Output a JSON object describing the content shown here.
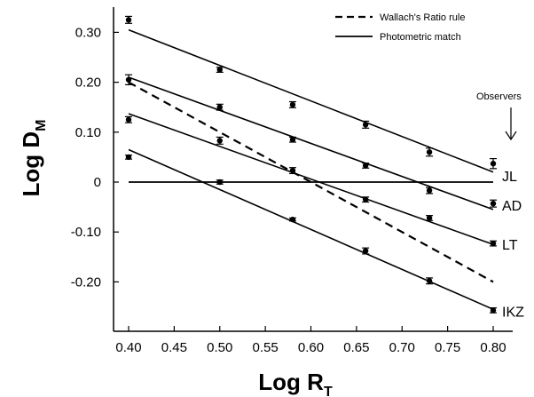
{
  "chart_data": {
    "type": "scatter",
    "title": "",
    "xlabel": {
      "main": "Log R",
      "sub": "T"
    },
    "ylabel": {
      "main": "Log D",
      "sub": "M"
    },
    "xlim": [
      0.38,
      0.81
    ],
    "ylim": [
      -0.27,
      0.33
    ],
    "x_ticks": [
      0.4,
      0.45,
      0.5,
      0.55,
      0.6,
      0.65,
      0.7,
      0.75,
      0.8
    ],
    "x_tick_labels": [
      "0.40",
      "0.45",
      "0.50",
      "0.55",
      "0.60",
      "0.65",
      "0.70",
      "0.75",
      "0.80"
    ],
    "y_ticks": [
      0.3,
      0.2,
      0.1,
      0,
      -0.1,
      -0.2
    ],
    "y_tick_labels": [
      "0.30",
      "0.20",
      "0.10",
      "0",
      "-0.10",
      "-0.20"
    ],
    "grid": false,
    "legend": {
      "position": "top-right",
      "entries": [
        {
          "label": "Wallach's Ratio rule",
          "style": "dashed"
        },
        {
          "label": "Photometric match",
          "style": "solid"
        }
      ]
    },
    "annotation": {
      "text": "Observers",
      "arrow": "down"
    },
    "x_points": [
      0.4,
      0.5,
      0.58,
      0.66,
      0.73,
      0.8
    ],
    "series": [
      {
        "name": "JL",
        "points": [
          0.325,
          0.225,
          0.155,
          0.115,
          0.06,
          0.037
        ],
        "errors": [
          0.007,
          0.005,
          0.006,
          0.007,
          0.008,
          0.01
        ],
        "fit_line": [
          [
            0.4,
            0.305
          ],
          [
            0.8,
            0.02
          ]
        ]
      },
      {
        "name": "AD",
        "points": [
          0.205,
          0.15,
          0.085,
          0.033,
          -0.017,
          -0.043
        ],
        "errors": [
          0.01,
          0.006,
          0.005,
          0.005,
          0.006,
          0.007
        ],
        "fit_line": [
          [
            0.4,
            0.21
          ],
          [
            0.8,
            -0.055
          ]
        ]
      },
      {
        "name": "LT",
        "points": [
          0.125,
          0.083,
          0.023,
          -0.035,
          -0.072,
          -0.123
        ],
        "errors": [
          0.006,
          0.007,
          0.006,
          0.005,
          0.005,
          0.005
        ],
        "fit_line": [
          [
            0.4,
            0.137
          ],
          [
            0.8,
            -0.125
          ]
        ]
      },
      {
        "name": "IKZ",
        "points": [
          0.05,
          0.0,
          -0.075,
          -0.138,
          -0.198,
          -0.257
        ],
        "errors": [
          0.004,
          0.004,
          0.003,
          0.006,
          0.006,
          0.005
        ],
        "fit_line": [
          [
            0.4,
            0.065
          ],
          [
            0.8,
            -0.255
          ]
        ]
      }
    ],
    "reference_lines": [
      {
        "name": "Wallach's Ratio rule",
        "style": "dashed",
        "points": [
          [
            0.4,
            0.2
          ],
          [
            0.8,
            -0.2
          ]
        ]
      },
      {
        "name": "zero",
        "style": "solid",
        "points": [
          [
            0.4,
            0.0
          ],
          [
            0.8,
            0.0
          ]
        ]
      }
    ]
  }
}
